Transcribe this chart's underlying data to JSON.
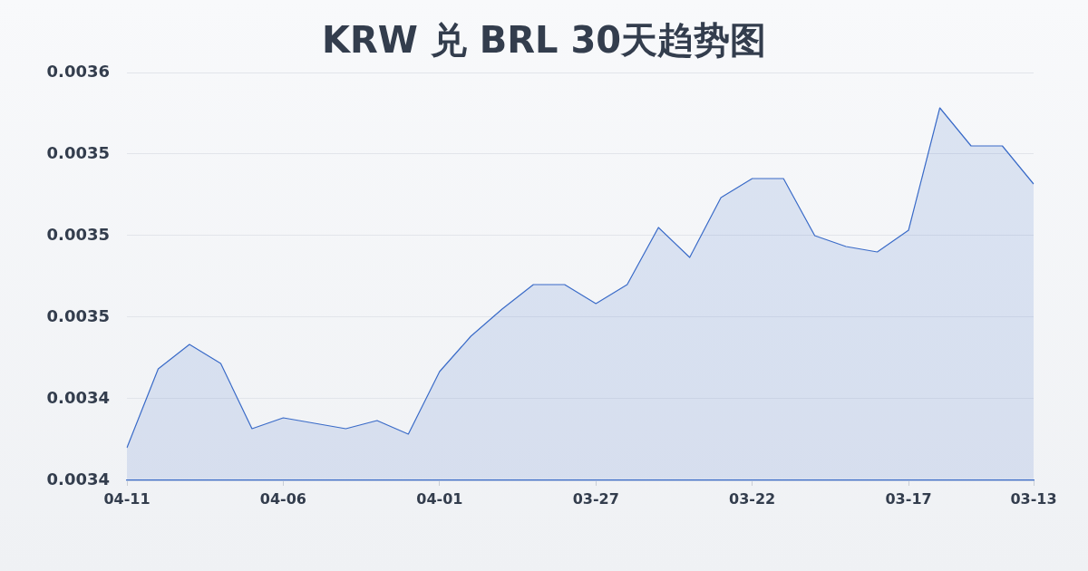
{
  "chart_data": {
    "type": "area",
    "title": "KRW 兑 BRL 30天趋势图",
    "categories": [
      "04-11",
      null,
      null,
      null,
      null,
      "04-06",
      null,
      null,
      null,
      null,
      "04-01",
      null,
      null,
      null,
      null,
      "03-27",
      null,
      null,
      null,
      null,
      "03-22",
      null,
      null,
      null,
      null,
      "03-17",
      null,
      null,
      null,
      "03-13"
    ],
    "series": [
      {
        "color": "#3a6bc8",
        "values": [
          0.003422,
          0.003451,
          0.00346,
          0.003453,
          0.003429,
          0.003433,
          0.003431,
          0.003429,
          0.003432,
          0.003427,
          0.00345,
          0.003463,
          0.003473,
          0.003482,
          0.003482,
          0.003475,
          0.003482,
          0.003503,
          0.003492,
          0.003514,
          0.003521,
          0.003521,
          0.0035,
          0.003496,
          0.003494,
          0.003502,
          0.003547,
          0.003533,
          0.003533,
          0.003519
        ]
      }
    ],
    "ylim": [
      0.00341,
      0.00356
    ],
    "yticks": [
      {
        "value": 0.00341,
        "label": "0.0034"
      },
      {
        "value": 0.00344,
        "label": "0.0034"
      },
      {
        "value": 0.00347,
        "label": "0.0035"
      },
      {
        "value": 0.0035,
        "label": "0.0035"
      },
      {
        "value": 0.00353,
        "label": "0.0035"
      },
      {
        "value": 0.00356,
        "label": "0.0036"
      }
    ],
    "grid": "y"
  }
}
